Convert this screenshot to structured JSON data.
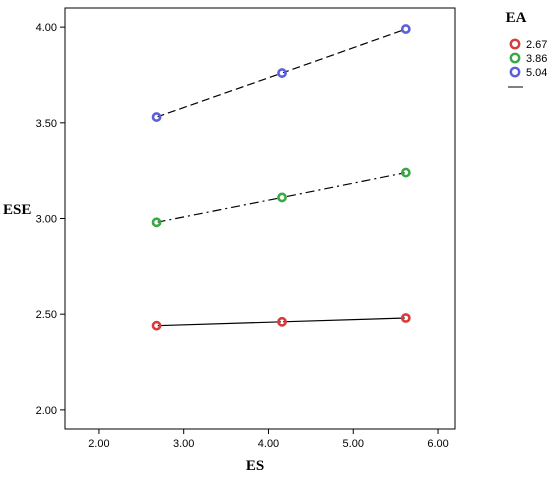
{
  "chart_data": {
    "type": "line",
    "xlabel": "ES",
    "ylabel": "ESE",
    "xlim": [
      1.6,
      6.2
    ],
    "ylim": [
      1.9,
      4.1
    ],
    "xticks": [
      2.0,
      3.0,
      4.0,
      5.0,
      6.0
    ],
    "yticks": [
      2.0,
      2.5,
      3.0,
      3.5,
      4.0
    ],
    "xtick_labels": [
      "2.00",
      "3.00",
      "4.00",
      "5.00",
      "6.00"
    ],
    "ytick_labels": [
      "2.00",
      "2.50",
      "3.00",
      "3.50",
      "4.00"
    ],
    "grid": false,
    "legend": {
      "title": "EA",
      "placement": "right-top",
      "entries": [
        "2.67",
        "3.86",
        "5.04"
      ]
    },
    "x": [
      2.68,
      4.16,
      5.62
    ],
    "series": [
      {
        "name": "2.67",
        "values": [
          2.44,
          2.46,
          2.48
        ],
        "color": "#d93a3a",
        "dash": "solid"
      },
      {
        "name": "3.86",
        "values": [
          2.98,
          3.11,
          3.24
        ],
        "color": "#3aa845",
        "dash": "dashdot"
      },
      {
        "name": "5.04",
        "values": [
          3.53,
          3.76,
          3.99
        ],
        "color": "#5a5fdc",
        "dash": "dashed"
      }
    ]
  }
}
